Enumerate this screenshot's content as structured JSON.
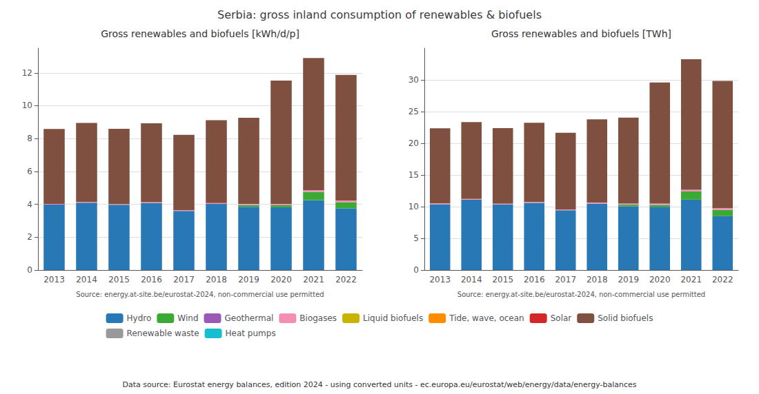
{
  "title": "Serbia: gross inland consumption of renewables & biofuels",
  "annotations": [
    "Data source: Eurostat energy balances, edition 2024 - using converted units - ec.europa.eu/eurostat/web/energy/data/energy-balances"
  ],
  "chart_data": [
    {
      "type": "bar",
      "stacked": true,
      "grid": true,
      "legend": "bottom",
      "title": "Gross renewables and biofuels [kWh/d/p]",
      "annotations": [
        "Source: energy.at-site.be/eurostat-2024, non-commercial use permitted"
      ],
      "categories": [
        "2013",
        "2014",
        "2015",
        "2016",
        "2017",
        "2018",
        "2019",
        "2020",
        "2021",
        "2022"
      ],
      "series": [
        {
          "name": "Hydro",
          "color": "#2878b5",
          "values": [
            3.98,
            4.1,
            3.97,
            4.08,
            3.6,
            4.02,
            3.85,
            3.82,
            4.25,
            3.75
          ]
        },
        {
          "name": "Wind",
          "color": "#3aaa35",
          "values": [
            0.0,
            0.0,
            0.0,
            0.0,
            0.0,
            0.0,
            0.1,
            0.12,
            0.5,
            0.38
          ]
        },
        {
          "name": "Geothermal",
          "color": "#9b59b6",
          "values": [
            0.0,
            0.0,
            0.0,
            0.0,
            0.0,
            0.0,
            0.0,
            0.0,
            0.0,
            0.0
          ]
        },
        {
          "name": "Biogases",
          "color": "#f48fb1",
          "values": [
            0.05,
            0.05,
            0.04,
            0.05,
            0.05,
            0.06,
            0.07,
            0.09,
            0.1,
            0.1
          ]
        },
        {
          "name": "Liquid biofuels",
          "color": "#c8b400",
          "values": [
            0.0,
            0.0,
            0.0,
            0.0,
            0.0,
            0.0,
            0.0,
            0.0,
            0.0,
            0.0
          ]
        },
        {
          "name": "Tide, wave, ocean",
          "color": "#ff8c00",
          "values": [
            0.0,
            0.0,
            0.0,
            0.0,
            0.0,
            0.0,
            0.0,
            0.0,
            0.0,
            0.0
          ]
        },
        {
          "name": "Solar",
          "color": "#d62728",
          "values": [
            0.0,
            0.0,
            0.0,
            0.0,
            0.0,
            0.0,
            0.0,
            0.0,
            0.0,
            0.0
          ]
        },
        {
          "name": "Solid biofuels",
          "color": "#7f4f3f",
          "values": [
            4.55,
            4.8,
            4.58,
            4.8,
            4.58,
            5.04,
            5.25,
            7.5,
            8.05,
            7.65
          ]
        },
        {
          "name": "Renewable waste",
          "color": "#999999",
          "values": [
            0.0,
            0.0,
            0.0,
            0.0,
            0.0,
            0.0,
            0.0,
            0.0,
            0.0,
            0.0
          ]
        },
        {
          "name": "Heat pumps",
          "color": "#17becf",
          "values": [
            0.0,
            0.0,
            0.0,
            0.0,
            0.0,
            0.0,
            0.0,
            0.0,
            0.0,
            0.0
          ]
        }
      ],
      "ylim": [
        0,
        13.5
      ],
      "yticks": [
        0,
        2,
        4,
        6,
        8,
        10,
        12
      ]
    },
    {
      "type": "bar",
      "stacked": true,
      "grid": true,
      "legend": "bottom",
      "title": "Gross renewables and biofuels [TWh]",
      "annotations": [
        "Source: energy.at-site.be/eurostat-2024, non-commercial use permitted"
      ],
      "categories": [
        "2013",
        "2014",
        "2015",
        "2016",
        "2017",
        "2018",
        "2019",
        "2020",
        "2021",
        "2022"
      ],
      "series": [
        {
          "name": "Hydro",
          "color": "#2878b5",
          "values": [
            10.38,
            11.1,
            10.35,
            10.6,
            9.44,
            10.48,
            10.05,
            9.96,
            11.1,
            8.5
          ]
        },
        {
          "name": "Wind",
          "color": "#3aaa35",
          "values": [
            0.0,
            0.0,
            0.0,
            0.0,
            0.0,
            0.0,
            0.26,
            0.31,
            1.3,
            0.99
          ]
        },
        {
          "name": "Geothermal",
          "color": "#9b59b6",
          "values": [
            0.0,
            0.0,
            0.0,
            0.0,
            0.0,
            0.0,
            0.0,
            0.0,
            0.0,
            0.0
          ]
        },
        {
          "name": "Biogases",
          "color": "#f48fb1",
          "values": [
            0.13,
            0.13,
            0.1,
            0.13,
            0.13,
            0.16,
            0.18,
            0.23,
            0.26,
            0.26
          ]
        },
        {
          "name": "Liquid biofuels",
          "color": "#c8b400",
          "values": [
            0.0,
            0.0,
            0.0,
            0.0,
            0.0,
            0.0,
            0.0,
            0.0,
            0.0,
            0.0
          ]
        },
        {
          "name": "Tide, wave, ocean",
          "color": "#ff8c00",
          "values": [
            0.0,
            0.0,
            0.0,
            0.0,
            0.0,
            0.0,
            0.0,
            0.0,
            0.0,
            0.0
          ]
        },
        {
          "name": "Solar",
          "color": "#d62728",
          "values": [
            0.0,
            0.0,
            0.0,
            0.0,
            0.0,
            0.0,
            0.0,
            0.0,
            0.0,
            0.0
          ]
        },
        {
          "name": "Solid biofuels",
          "color": "#7f4f3f",
          "values": [
            11.86,
            12.1,
            11.94,
            12.51,
            12.1,
            13.14,
            13.55,
            19.1,
            20.6,
            20.1
          ]
        },
        {
          "name": "Renewable waste",
          "color": "#999999",
          "values": [
            0.0,
            0.0,
            0.0,
            0.0,
            0.0,
            0.0,
            0.0,
            0.0,
            0.0,
            0.0
          ]
        },
        {
          "name": "Heat pumps",
          "color": "#17becf",
          "values": [
            0.0,
            0.0,
            0.0,
            0.0,
            0.0,
            0.0,
            0.0,
            0.0,
            0.0,
            0.0
          ]
        }
      ],
      "ylim": [
        0,
        35
      ],
      "yticks": [
        0,
        5,
        10,
        15,
        20,
        25,
        30
      ]
    }
  ]
}
